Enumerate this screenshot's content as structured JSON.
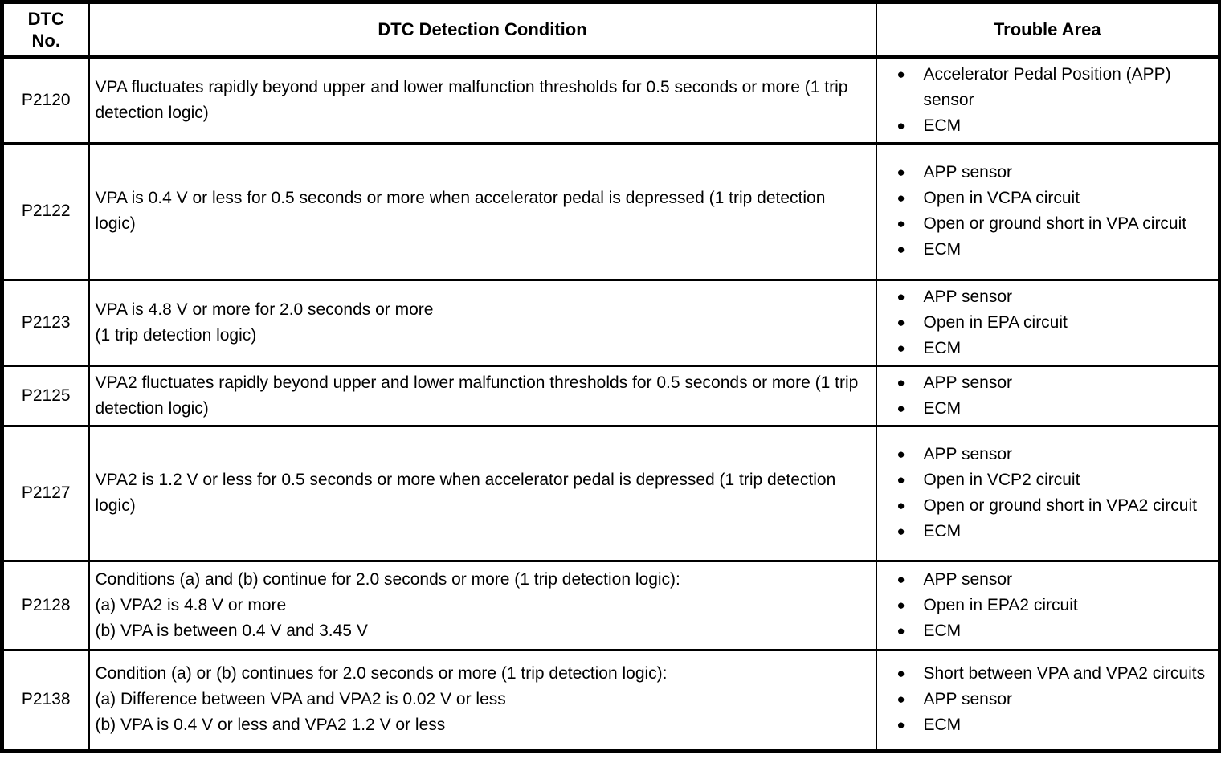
{
  "colors": {
    "text": "#000000",
    "background": "#ffffff",
    "border": "#000000"
  },
  "table": {
    "headers": {
      "col1_lines": [
        "DTC",
        "No."
      ],
      "col2": "DTC Detection Condition",
      "col3": "Trouble Area"
    },
    "rows": [
      {
        "dtc": "P2120",
        "condition_lines": [
          "VPA fluctuates rapidly beyond upper and lower malfunction thresholds for 0.5 seconds or more (1 trip detection logic)"
        ],
        "trouble_areas": [
          "Accelerator Pedal Position (APP) sensor",
          "ECM"
        ]
      },
      {
        "dtc": "P2122",
        "condition_lines": [
          "VPA is 0.4 V or less for 0.5 seconds or more when accelerator pedal is depressed (1 trip detection logic)"
        ],
        "trouble_areas": [
          "APP sensor",
          "Open in VCPA circuit",
          "Open or ground short in VPA circuit",
          "ECM"
        ]
      },
      {
        "dtc": "P2123",
        "condition_lines": [
          "VPA is 4.8 V or more for 2.0 seconds or more",
          "(1 trip detection logic)"
        ],
        "trouble_areas": [
          "APP sensor",
          "Open in EPA circuit",
          "ECM"
        ]
      },
      {
        "dtc": "P2125",
        "condition_lines": [
          "VPA2 fluctuates rapidly beyond upper and lower malfunction thresholds for 0.5 seconds or more (1 trip detection logic)"
        ],
        "trouble_areas": [
          "APP sensor",
          "ECM"
        ]
      },
      {
        "dtc": "P2127",
        "condition_lines": [
          "VPA2 is 1.2 V or less for 0.5 seconds or more when accelerator pedal is depressed (1 trip detection logic)"
        ],
        "trouble_areas": [
          "APP sensor",
          "Open in VCP2 circuit",
          "Open or ground short in VPA2 circuit",
          "ECM"
        ]
      },
      {
        "dtc": "P2128",
        "condition_lines": [
          "Conditions (a) and (b) continue for 2.0 seconds or more (1 trip detection logic):",
          "(a) VPA2 is 4.8 V or more",
          "(b) VPA is between 0.4 V and 3.45 V"
        ],
        "trouble_areas": [
          "APP sensor",
          "Open in EPA2 circuit",
          "ECM"
        ]
      },
      {
        "dtc": "P2138",
        "condition_lines": [
          "Condition (a) or (b) continues for 2.0 seconds or more (1 trip detection logic):",
          "(a) Difference between VPA and VPA2 is 0.02 V or less",
          "(b) VPA is 0.4 V or less and VPA2 1.2 V or less"
        ],
        "trouble_areas": [
          "Short between VPA and VPA2 circuits",
          "APP sensor",
          "ECM"
        ]
      }
    ]
  }
}
